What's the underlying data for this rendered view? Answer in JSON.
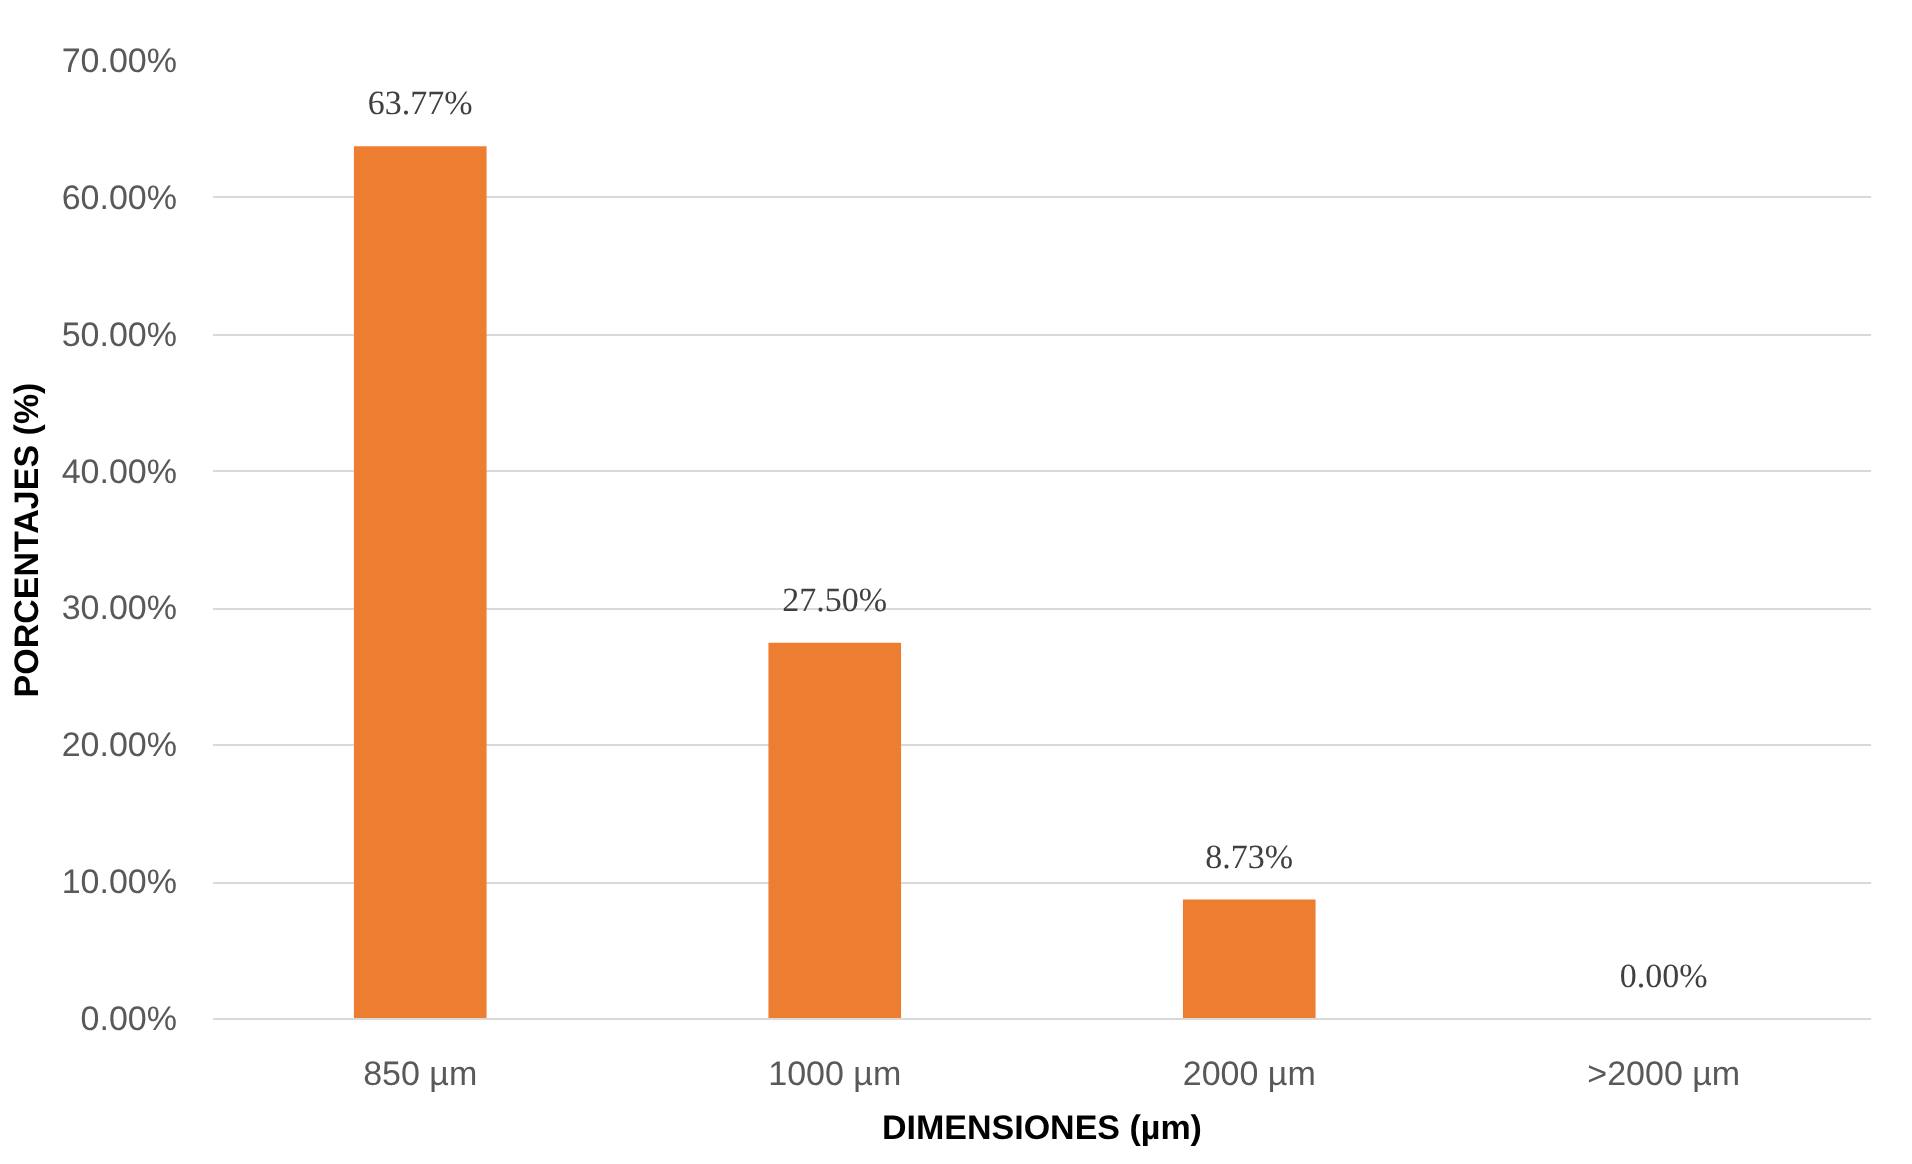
{
  "chart_data": {
    "type": "bar",
    "xlabel": "DIMENSIONES (µm)",
    "ylabel": "PORCENTAJES (%)",
    "categories": [
      "850 µm",
      "1000 µm",
      "2000 µm",
      ">2000 µm"
    ],
    "values": [
      63.77,
      27.5,
      8.73,
      0.0
    ],
    "value_labels": [
      "63.77%",
      "27.50%",
      "8.73%",
      "0.00%"
    ],
    "color": "#ed7d31",
    "ylim": [
      0,
      70
    ],
    "yticks": [
      {
        "value": 0,
        "label": "0.00%"
      },
      {
        "value": 10,
        "label": "10.00%"
      },
      {
        "value": 20,
        "label": "20.00%"
      },
      {
        "value": 30,
        "label": "30.00%"
      },
      {
        "value": 40,
        "label": "40.00%"
      },
      {
        "value": 50,
        "label": "50.00%"
      },
      {
        "value": 60,
        "label": "60.00%"
      },
      {
        "value": 70,
        "label": "70.00%"
      }
    ],
    "grid": "y"
  }
}
